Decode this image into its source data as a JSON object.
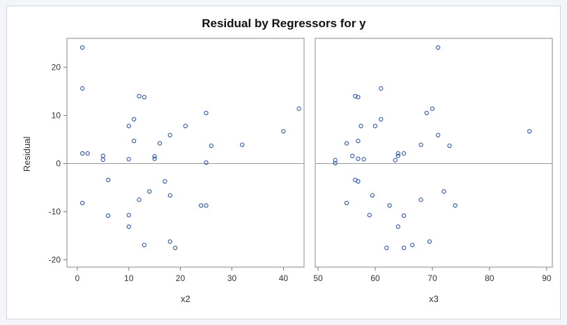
{
  "chart_data": {
    "type": "scatter",
    "title": "Residual by Regressors for y",
    "ylabel": "Residual",
    "ylim": [
      -21.5,
      26
    ],
    "yticks": [
      -20,
      -10,
      0,
      10,
      20
    ],
    "reference_line_y": 0,
    "colors": {
      "marker": "#2a56a8",
      "reference": "#9a9a9a",
      "frame": "#8a8a8a"
    },
    "panels": [
      {
        "xlabel": "x2",
        "xlim": [
          -2,
          44
        ],
        "xticks": [
          0,
          10,
          20,
          30,
          40
        ],
        "points": [
          [
            1,
            24.1
          ],
          [
            1,
            15.6
          ],
          [
            1,
            2.1
          ],
          [
            2,
            2.1
          ],
          [
            1,
            -8.2
          ],
          [
            5,
            1.6
          ],
          [
            5,
            0.8
          ],
          [
            6,
            -3.4
          ],
          [
            6,
            -10.8
          ],
          [
            10,
            7.8
          ],
          [
            10,
            0.9
          ],
          [
            10,
            -10.7
          ],
          [
            10,
            -13.1
          ],
          [
            11,
            9.2
          ],
          [
            11,
            4.7
          ],
          [
            12,
            14.0
          ],
          [
            12,
            -7.5
          ],
          [
            13,
            13.8
          ],
          [
            13,
            -16.9
          ],
          [
            14,
            -5.8
          ],
          [
            15,
            1.5
          ],
          [
            15,
            1.0
          ],
          [
            16,
            4.2
          ],
          [
            17,
            -3.7
          ],
          [
            18,
            5.9
          ],
          [
            18,
            -6.6
          ],
          [
            18,
            -16.2
          ],
          [
            19,
            -17.5
          ],
          [
            21,
            7.8
          ],
          [
            24,
            -8.7
          ],
          [
            25,
            10.5
          ],
          [
            25,
            0.2
          ],
          [
            25,
            -8.7
          ],
          [
            26,
            3.7
          ],
          [
            32,
            3.9
          ],
          [
            40,
            6.7
          ],
          [
            43,
            11.4
          ]
        ]
      },
      {
        "xlabel": "x3",
        "xlim": [
          49.5,
          91
        ],
        "xticks": [
          50,
          60,
          70,
          80,
          90
        ],
        "points": [
          [
            53,
            0.7
          ],
          [
            53,
            0.1
          ],
          [
            55,
            4.2
          ],
          [
            55,
            -8.2
          ],
          [
            56,
            1.6
          ],
          [
            56.5,
            14.0
          ],
          [
            56.5,
            -3.4
          ],
          [
            57,
            13.8
          ],
          [
            57,
            4.7
          ],
          [
            57,
            1.0
          ],
          [
            57,
            -3.7
          ],
          [
            57.5,
            7.8
          ],
          [
            58,
            0.9
          ],
          [
            59,
            -10.7
          ],
          [
            59.5,
            -6.6
          ],
          [
            60,
            7.8
          ],
          [
            61,
            15.6
          ],
          [
            61,
            9.2
          ],
          [
            62,
            -17.5
          ],
          [
            62.5,
            -8.7
          ],
          [
            63.5,
            0.7
          ],
          [
            64,
            2.1
          ],
          [
            64,
            1.6
          ],
          [
            64,
            -13.1
          ],
          [
            65,
            2.1
          ],
          [
            65,
            -10.8
          ],
          [
            65,
            -17.5
          ],
          [
            66.5,
            -16.9
          ],
          [
            68,
            3.9
          ],
          [
            68,
            -7.5
          ],
          [
            69,
            10.5
          ],
          [
            69.5,
            -16.2
          ],
          [
            70,
            11.4
          ],
          [
            71,
            24.1
          ],
          [
            71,
            5.9
          ],
          [
            72,
            -5.8
          ],
          [
            73,
            3.7
          ],
          [
            74,
            -8.7
          ],
          [
            87,
            6.7
          ]
        ]
      }
    ]
  }
}
